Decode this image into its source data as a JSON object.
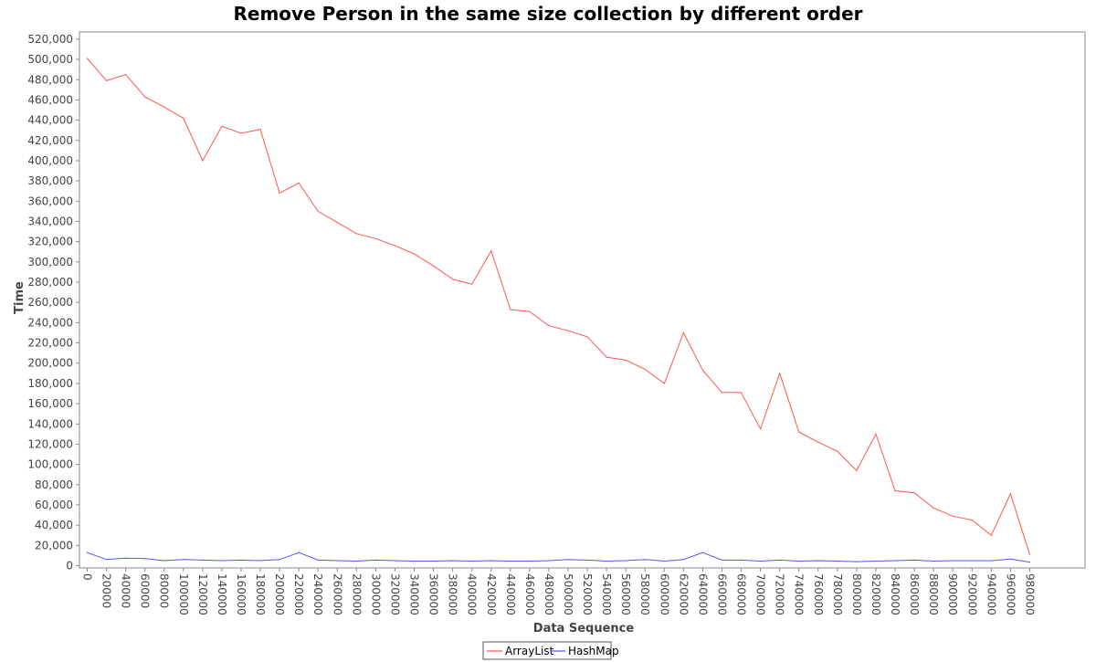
{
  "chart_data": {
    "type": "line",
    "title": "Remove Person in the same size collection by different order",
    "xlabel": "Data Sequence",
    "ylabel": "Time",
    "ylim": [
      0,
      525000
    ],
    "y_ticks": [
      "0",
      "20,000",
      "40,000",
      "60,000",
      "80,000",
      "100,000",
      "120,000",
      "140,000",
      "160,000",
      "180,000",
      "200,000",
      "220,000",
      "240,000",
      "260,000",
      "280,000",
      "300,000",
      "320,000",
      "340,000",
      "360,000",
      "380,000",
      "400,000",
      "420,000",
      "440,000",
      "460,000",
      "480,000",
      "500,000",
      "520,000"
    ],
    "x": [
      "0",
      "20000",
      "40000",
      "60000",
      "80000",
      "100000",
      "120000",
      "140000",
      "160000",
      "180000",
      "200000",
      "220000",
      "240000",
      "260000",
      "280000",
      "300000",
      "320000",
      "340000",
      "360000",
      "380000",
      "400000",
      "420000",
      "440000",
      "460000",
      "480000",
      "500000",
      "520000",
      "540000",
      "560000",
      "580000",
      "600000",
      "620000",
      "640000",
      "660000",
      "680000",
      "700000",
      "720000",
      "740000",
      "760000",
      "780000",
      "800000",
      "820000",
      "840000",
      "860000",
      "880000",
      "900000",
      "920000",
      "940000",
      "960000",
      "980000"
    ],
    "series": [
      {
        "name": "ArrayList",
        "color": "#ff5555",
        "values": [
          501000,
          479000,
          485000,
          463000,
          453000,
          442000,
          400000,
          434000,
          427000,
          431000,
          368000,
          378000,
          350000,
          339000,
          328000,
          323000,
          316000,
          308000,
          296000,
          283000,
          278000,
          311000,
          253000,
          251000,
          237000,
          232000,
          226000,
          206000,
          203000,
          194000,
          180000,
          230000,
          193000,
          171000,
          171000,
          135000,
          190000,
          132000,
          122000,
          113000,
          94000,
          130000,
          74000,
          72000,
          57000,
          49000,
          45000,
          30000,
          71000,
          11000
        ]
      },
      {
        "name": "HashMap",
        "color": "#5555ff",
        "values": [
          13000,
          6000,
          7500,
          7000,
          5000,
          6000,
          5500,
          5000,
          5500,
          5000,
          6000,
          13000,
          5500,
          5000,
          4500,
          5500,
          5000,
          4500,
          4500,
          5000,
          4500,
          5000,
          4500,
          4500,
          5000,
          6000,
          5500,
          4500,
          5000,
          6000,
          4500,
          6000,
          13000,
          5500,
          5500,
          4500,
          5500,
          4500,
          5000,
          4500,
          4000,
          4500,
          5000,
          5500,
          4500,
          5000,
          5000,
          5000,
          6500,
          3500
        ]
      }
    ],
    "grid": false,
    "legend": "bottom-center"
  }
}
